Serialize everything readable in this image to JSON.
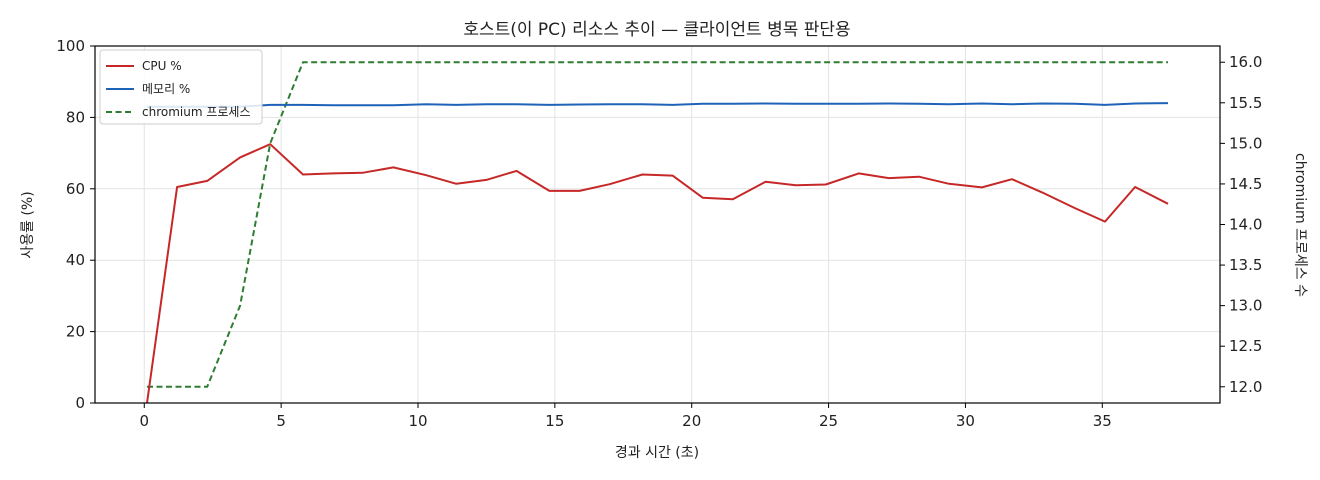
{
  "chart_data": {
    "type": "line",
    "title": "호스트(이 PC) 리소스 추이 — 클라이언트 병목 판단용",
    "xlabel": "경과 시간 (초)",
    "ylabel": "사용률 (%)",
    "y2label": "chromium 프로세스 수",
    "xlim": [
      -1.8,
      39.3
    ],
    "ylim": [
      0,
      100
    ],
    "y2lim": [
      11.8,
      16.2
    ],
    "xticks": [
      0,
      5,
      10,
      15,
      20,
      25,
      30,
      35
    ],
    "yticks": [
      0,
      20,
      40,
      60,
      80,
      100
    ],
    "y2ticks": [
      12.0,
      12.5,
      13.0,
      13.5,
      14.0,
      14.5,
      15.0,
      15.5,
      16.0
    ],
    "grid": true,
    "legend_position": "top-left",
    "series": [
      {
        "name": "CPU %",
        "axis": "left",
        "color": "#c62828",
        "style": "solid",
        "x": [
          0.1,
          1.2,
          2.3,
          3.5,
          4.6,
          5.8,
          6.9,
          8.0,
          9.1,
          10.3,
          11.4,
          12.5,
          13.6,
          14.8,
          15.9,
          17.0,
          18.2,
          19.3,
          20.4,
          21.5,
          22.7,
          23.8,
          24.9,
          26.1,
          27.2,
          28.3,
          29.4,
          30.6,
          31.7,
          32.8,
          34.0,
          35.1,
          36.2,
          37.4
        ],
        "y": [
          0,
          60.5,
          62.2,
          68.8,
          72.5,
          64.0,
          64.3,
          64.5,
          66.0,
          63.8,
          61.4,
          62.5,
          65.0,
          59.4,
          59.4,
          61.3,
          64.0,
          63.7,
          57.5,
          57.1,
          62.0,
          61.0,
          61.2,
          64.3,
          63.0,
          63.4,
          61.4,
          60.4,
          62.7,
          59.0,
          54.6,
          50.8,
          60.5,
          55.8
        ]
      },
      {
        "name": "메모리 %",
        "axis": "left",
        "color": "#1f63b8",
        "style": "solid",
        "x": [
          0.1,
          1.2,
          2.3,
          3.5,
          4.6,
          5.8,
          6.9,
          8.0,
          9.1,
          10.3,
          11.4,
          12.5,
          13.6,
          14.8,
          15.9,
          17.0,
          18.2,
          19.3,
          20.4,
          21.5,
          22.7,
          23.8,
          24.9,
          26.1,
          27.2,
          28.3,
          29.4,
          30.6,
          31.7,
          32.8,
          34.0,
          35.1,
          36.2,
          37.4
        ],
        "y": [
          83.0,
          83.0,
          83.0,
          83.0,
          83.5,
          83.5,
          83.4,
          83.4,
          83.4,
          83.7,
          83.5,
          83.7,
          83.7,
          83.5,
          83.6,
          83.7,
          83.7,
          83.5,
          83.8,
          83.8,
          83.9,
          83.8,
          83.8,
          83.8,
          83.9,
          83.8,
          83.7,
          83.9,
          83.7,
          83.9,
          83.8,
          83.5,
          83.9,
          84.0
        ]
      },
      {
        "name": "chromium 프로세스",
        "axis": "right",
        "color": "#2e7d32",
        "style": "dashed",
        "x": [
          0.1,
          1.2,
          2.3,
          3.5,
          4.6,
          5.8,
          6.9,
          8.0,
          9.1,
          10.3,
          11.4,
          12.5,
          13.6,
          14.8,
          15.9,
          17.0,
          18.2,
          19.3,
          20.4,
          21.5,
          22.7,
          23.8,
          24.9,
          26.1,
          27.2,
          28.3,
          29.4,
          30.6,
          31.7,
          32.8,
          34.0,
          35.1,
          36.2,
          37.4
        ],
        "y": [
          12,
          12,
          12,
          13,
          15,
          16,
          16,
          16,
          16,
          16,
          16,
          16,
          16,
          16,
          16,
          16,
          16,
          16,
          16,
          16,
          16,
          16,
          16,
          16,
          16,
          16,
          16,
          16,
          16,
          16,
          16,
          16,
          16,
          16
        ]
      }
    ]
  }
}
